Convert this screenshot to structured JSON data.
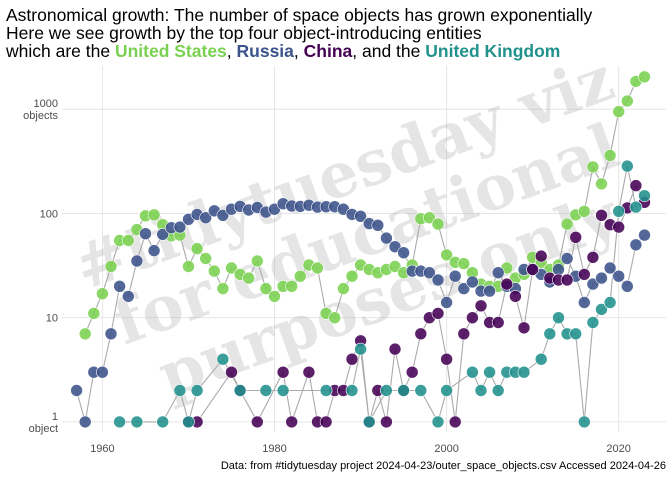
{
  "title": {
    "line1": "Astronomical growth: The number of space objects has grown exponentially",
    "line2": "Here we see growth by the top four object-introducing entities",
    "line3_prefix": "which are the ",
    "us": "United States",
    "sep1": ", ",
    "russia": "Russia",
    "sep2": ", ",
    "china": "China",
    "sep3": ", and the ",
    "uk": "United Kingdom"
  },
  "caption": "Data: from #tidytuesday project 2024-04-23/outer_space_objects.csv Accessed 2024-04-26",
  "watermark": [
    "#tidytuesday viz",
    "for educational",
    "purposes only"
  ],
  "colors": {
    "United States": "#7ad151",
    "Russia": "#3b528b",
    "China": "#440154",
    "United Kingdom": "#21918c",
    "line": "#aaaaaa",
    "grid": "#e6e6e6"
  },
  "chart_data": {
    "type": "scatter",
    "title": "Astronomical growth: The number of space objects has grown exponentially",
    "xlabel": "",
    "ylabel": "",
    "yscale": "log10",
    "xlim": [
      1955.3,
      2025.5
    ],
    "ylim": [
      0.8,
      2600
    ],
    "xticks": [
      1960,
      1980,
      2000,
      2020
    ],
    "yticks": [
      {
        "value": 1,
        "label": [
          "1",
          "object"
        ]
      },
      {
        "value": 10,
        "label": [
          "10"
        ]
      },
      {
        "value": 100,
        "label": [
          "100"
        ]
      },
      {
        "value": 1000,
        "label": [
          "1000",
          "objects"
        ]
      }
    ],
    "legend": "none (colored entity names in subtitle)",
    "series": [
      {
        "name": "United States",
        "color": "#7ad151",
        "points": [
          [
            1958,
            7
          ],
          [
            1959,
            11
          ],
          [
            1960,
            17
          ],
          [
            1961,
            31
          ],
          [
            1962,
            55
          ],
          [
            1963,
            55
          ],
          [
            1964,
            70
          ],
          [
            1965,
            95
          ],
          [
            1966,
            97
          ],
          [
            1967,
            78
          ],
          [
            1968,
            61
          ],
          [
            1969,
            62
          ],
          [
            1970,
            31
          ],
          [
            1971,
            46
          ],
          [
            1972,
            37
          ],
          [
            1973,
            28
          ],
          [
            1974,
            19
          ],
          [
            1975,
            30
          ],
          [
            1976,
            26
          ],
          [
            1977,
            24
          ],
          [
            1978,
            35
          ],
          [
            1979,
            19
          ],
          [
            1980,
            16
          ],
          [
            1981,
            20
          ],
          [
            1982,
            20
          ],
          [
            1983,
            25
          ],
          [
            1984,
            32
          ],
          [
            1985,
            30
          ],
          [
            1986,
            11
          ],
          [
            1987,
            10
          ],
          [
            1988,
            19
          ],
          [
            1989,
            25
          ],
          [
            1990,
            32
          ],
          [
            1991,
            29
          ],
          [
            1992,
            27
          ],
          [
            1993,
            29
          ],
          [
            1994,
            31
          ],
          [
            1995,
            27
          ],
          [
            1996,
            32
          ],
          [
            1997,
            89
          ],
          [
            1998,
            91
          ],
          [
            1999,
            79
          ],
          [
            2000,
            40
          ],
          [
            2001,
            34
          ],
          [
            2002,
            33
          ],
          [
            2003,
            27
          ],
          [
            2004,
            21
          ],
          [
            2005,
            20
          ],
          [
            2006,
            20
          ],
          [
            2007,
            30
          ],
          [
            2008,
            24
          ],
          [
            2009,
            26
          ],
          [
            2010,
            38
          ],
          [
            2011,
            34
          ],
          [
            2012,
            29
          ],
          [
            2013,
            32
          ],
          [
            2014,
            79
          ],
          [
            2015,
            97
          ],
          [
            2016,
            105
          ],
          [
            2017,
            280
          ],
          [
            2018,
            192
          ],
          [
            2019,
            360
          ],
          [
            2020,
            950
          ],
          [
            2021,
            1200
          ],
          [
            2022,
            1850
          ],
          [
            2023,
            2050
          ]
        ]
      },
      {
        "name": "Russia",
        "color": "#3b528b",
        "points": [
          [
            1957,
            2
          ],
          [
            1958,
            1
          ],
          [
            1959,
            3
          ],
          [
            1960,
            3
          ],
          [
            1961,
            7
          ],
          [
            1962,
            20
          ],
          [
            1963,
            16
          ],
          [
            1964,
            35
          ],
          [
            1965,
            64
          ],
          [
            1966,
            44
          ],
          [
            1967,
            63
          ],
          [
            1968,
            73
          ],
          [
            1969,
            74
          ],
          [
            1970,
            88
          ],
          [
            1971,
            98
          ],
          [
            1972,
            91
          ],
          [
            1973,
            106
          ],
          [
            1974,
            96
          ],
          [
            1975,
            110
          ],
          [
            1976,
            117
          ],
          [
            1977,
            108
          ],
          [
            1978,
            114
          ],
          [
            1979,
            103
          ],
          [
            1980,
            110
          ],
          [
            1981,
            124
          ],
          [
            1982,
            118
          ],
          [
            1983,
            117
          ],
          [
            1984,
            120
          ],
          [
            1985,
            115
          ],
          [
            1986,
            116
          ],
          [
            1987,
            116
          ],
          [
            1988,
            110
          ],
          [
            1989,
            98
          ],
          [
            1990,
            94
          ],
          [
            1991,
            80
          ],
          [
            1992,
            77
          ],
          [
            1993,
            58
          ],
          [
            1994,
            48
          ],
          [
            1995,
            42
          ],
          [
            1996,
            28
          ],
          [
            1997,
            28
          ],
          [
            1998,
            27
          ],
          [
            1999,
            23
          ],
          [
            2000,
            14
          ],
          [
            2001,
            25
          ],
          [
            2002,
            19
          ],
          [
            2003,
            22
          ],
          [
            2004,
            18
          ],
          [
            2005,
            18
          ],
          [
            2006,
            27
          ],
          [
            2007,
            20
          ],
          [
            2008,
            19
          ],
          [
            2009,
            29
          ],
          [
            2010,
            29
          ],
          [
            2011,
            26
          ],
          [
            2012,
            22
          ],
          [
            2013,
            29
          ],
          [
            2014,
            37
          ],
          [
            2015,
            25
          ],
          [
            2016,
            14
          ],
          [
            2017,
            21
          ],
          [
            2018,
            24
          ],
          [
            2019,
            30
          ],
          [
            2020,
            25
          ],
          [
            2021,
            20
          ],
          [
            2022,
            50
          ],
          [
            2023,
            62
          ]
        ]
      },
      {
        "name": "China",
        "color": "#440154",
        "points": [
          [
            1970,
            1
          ],
          [
            1971,
            1
          ],
          [
            1975,
            3
          ],
          [
            1976,
            2
          ],
          [
            1978,
            1
          ],
          [
            1981,
            3
          ],
          [
            1982,
            1
          ],
          [
            1984,
            3
          ],
          [
            1985,
            1
          ],
          [
            1986,
            1
          ],
          [
            1987,
            2
          ],
          [
            1988,
            2
          ],
          [
            1989,
            4
          ],
          [
            1990,
            6
          ],
          [
            1991,
            1
          ],
          [
            1992,
            2
          ],
          [
            1993,
            1
          ],
          [
            1994,
            5
          ],
          [
            1995,
            2
          ],
          [
            1996,
            3
          ],
          [
            1997,
            7
          ],
          [
            1998,
            10
          ],
          [
            1999,
            11
          ],
          [
            2000,
            4
          ],
          [
            2001,
            1
          ],
          [
            2002,
            7
          ],
          [
            2003,
            10
          ],
          [
            2004,
            13
          ],
          [
            2005,
            9
          ],
          [
            2006,
            9
          ],
          [
            2007,
            21
          ],
          [
            2008,
            16
          ],
          [
            2009,
            8
          ],
          [
            2010,
            29
          ],
          [
            2011,
            39
          ],
          [
            2012,
            24
          ],
          [
            2013,
            23
          ],
          [
            2014,
            23
          ],
          [
            2015,
            59
          ],
          [
            2016,
            26
          ],
          [
            2017,
            38
          ],
          [
            2018,
            96
          ],
          [
            2019,
            78
          ],
          [
            2020,
            74
          ],
          [
            2021,
            113
          ],
          [
            2022,
            185
          ],
          [
            2023,
            128
          ]
        ]
      },
      {
        "name": "United Kingdom",
        "color": "#21918c",
        "points": [
          [
            1962,
            1
          ],
          [
            1964,
            1
          ],
          [
            1967,
            1
          ],
          [
            1969,
            2
          ],
          [
            1970,
            1
          ],
          [
            1971,
            2
          ],
          [
            1974,
            4
          ],
          [
            1976,
            2
          ],
          [
            1979,
            2
          ],
          [
            1981,
            2
          ],
          [
            1986,
            2
          ],
          [
            1989,
            2
          ],
          [
            1990,
            5
          ],
          [
            1991,
            1
          ],
          [
            1993,
            2
          ],
          [
            1995,
            2
          ],
          [
            1997,
            2
          ],
          [
            1999,
            1
          ],
          [
            2000,
            2
          ],
          [
            2003,
            3
          ],
          [
            2004,
            2
          ],
          [
            2005,
            3
          ],
          [
            2006,
            2
          ],
          [
            2007,
            3
          ],
          [
            2008,
            3
          ],
          [
            2009,
            3
          ],
          [
            2011,
            4
          ],
          [
            2012,
            7
          ],
          [
            2013,
            10
          ],
          [
            2014,
            7
          ],
          [
            2015,
            7
          ],
          [
            2016,
            1
          ],
          [
            2017,
            9
          ],
          [
            2018,
            12
          ],
          [
            2019,
            14
          ],
          [
            2020,
            105
          ],
          [
            2021,
            285
          ],
          [
            2022,
            115
          ],
          [
            2023,
            148
          ]
        ]
      }
    ]
  }
}
